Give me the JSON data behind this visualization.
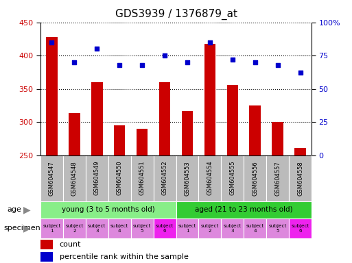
{
  "title": "GDS3939 / 1376879_at",
  "samples": [
    "GSM604547",
    "GSM604548",
    "GSM604549",
    "GSM604550",
    "GSM604551",
    "GSM604552",
    "GSM604553",
    "GSM604554",
    "GSM604555",
    "GSM604556",
    "GSM604557",
    "GSM604558"
  ],
  "counts": [
    428,
    313,
    360,
    295,
    290,
    360,
    317,
    418,
    356,
    325,
    300,
    261
  ],
  "percentile_ranks": [
    85,
    70,
    80,
    68,
    68,
    75,
    70,
    85,
    72,
    70,
    68,
    62
  ],
  "ylim_left": [
    250,
    450
  ],
  "ylim_right": [
    0,
    100
  ],
  "yticks_left": [
    250,
    300,
    350,
    400,
    450
  ],
  "yticks_right": [
    0,
    25,
    50,
    75,
    100
  ],
  "ytick_right_labels": [
    "0",
    "25",
    "50",
    "75",
    "100%"
  ],
  "bar_color": "#cc0000",
  "dot_color": "#0000cc",
  "age_groups": [
    {
      "label": "young (3 to 5 months old)",
      "start": 0,
      "end": 6,
      "color": "#88ee88"
    },
    {
      "label": "aged (21 to 23 months old)",
      "start": 6,
      "end": 12,
      "color": "#33cc33"
    }
  ],
  "specimen_labels": [
    "subject\n1",
    "subject\n2",
    "subject\n3",
    "subject\n4",
    "subject\n5",
    "subject\n6",
    "subject\n1",
    "subject\n2",
    "subject\n3",
    "subject\n4",
    "subject\n5",
    "subject\n6"
  ],
  "specimen_colors_light": "#dd88dd",
  "specimen_colors_dark": "#ee22ee",
  "specimen_dark_indices": [
    5,
    11
  ],
  "tick_label_color": "#cc0000",
  "right_tick_color": "#0000cc",
  "grid_color": "black",
  "grid_linestyle": "dotted",
  "xticklabel_bg": "#bbbbbb",
  "bar_width": 0.5,
  "dot_marker_size": 18
}
